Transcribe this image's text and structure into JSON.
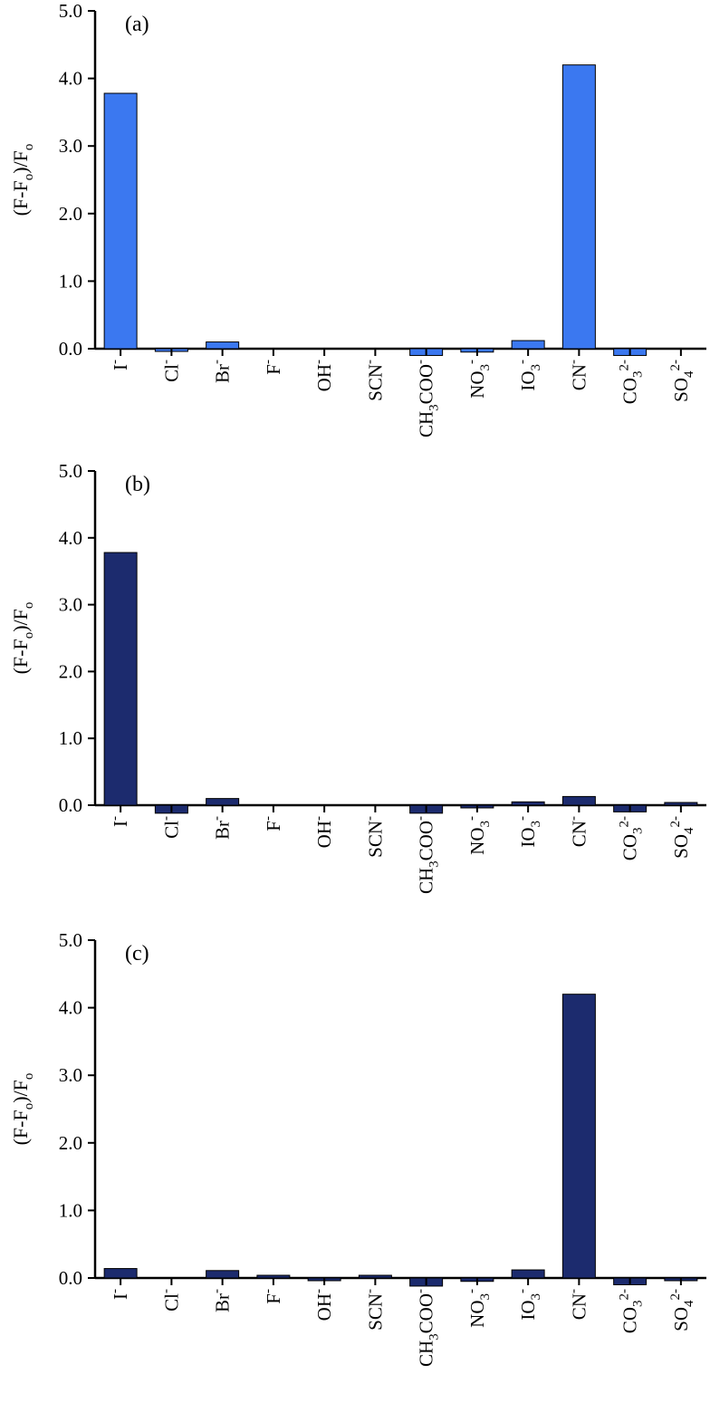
{
  "chart_data": [
    {
      "type": "bar",
      "panel_label": "(a)",
      "ylabel": "(F-Fo)/Fo",
      "ylim": [
        0,
        5
      ],
      "yticks": [
        "0.0",
        "1.0",
        "2.0",
        "3.0",
        "4.0",
        "5.0"
      ],
      "categories": [
        "I-",
        "Cl-",
        "Br-",
        "F-",
        "OH-",
        "SCN-",
        "CH3COO-",
        "NO3-",
        "IO3-",
        "CN-",
        "CO3 2-",
        "SO4 2-"
      ],
      "values": [
        3.78,
        -0.03,
        0.1,
        0.0,
        0.0,
        0.0,
        -0.1,
        -0.05,
        0.12,
        4.2,
        -0.1,
        0.0
      ],
      "bar_color": "#3b78f0",
      "grid": false
    },
    {
      "type": "bar",
      "panel_label": "(b)",
      "ylabel": "(F-Fo)/Fo",
      "ylim": [
        0,
        5
      ],
      "yticks": [
        "0.0",
        "1.0",
        "2.0",
        "3.0",
        "4.0",
        "5.0"
      ],
      "categories": [
        "I-",
        "Cl-",
        "Br-",
        "F-",
        "OH-",
        "SCN-",
        "CH3COO-",
        "NO3-",
        "IO3-",
        "CN-",
        "CO3 2-",
        "SO4 2-"
      ],
      "values": [
        3.78,
        -0.12,
        0.1,
        0.0,
        0.0,
        0.0,
        -0.12,
        -0.04,
        0.05,
        0.13,
        -0.1,
        0.03
      ],
      "bar_color": "#1c2b6e",
      "grid": false
    },
    {
      "type": "bar",
      "panel_label": "(c)",
      "ylabel": "(F-Fo)/Fo",
      "ylim": [
        0,
        5
      ],
      "yticks": [
        "0.0",
        "1.0",
        "2.0",
        "3.0",
        "4.0",
        "5.0"
      ],
      "categories": [
        "I-",
        "Cl-",
        "Br-",
        "F-",
        "OH-",
        "SCN-",
        "CH3COO-",
        "NO3-",
        "IO3-",
        "CN-",
        "CO3 2-",
        "SO4 2-"
      ],
      "values": [
        0.14,
        0.0,
        0.11,
        0.02,
        -0.02,
        0.02,
        -0.12,
        -0.05,
        0.12,
        4.2,
        -0.1,
        -0.02
      ],
      "bar_color": "#1c2b6e",
      "grid": false
    }
  ]
}
